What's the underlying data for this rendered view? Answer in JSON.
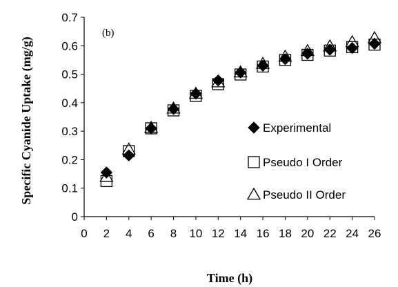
{
  "chart_data": {
    "type": "scatter",
    "panel_label": "(b)",
    "xlabel": "Time (h)",
    "ylabel": "Specific Cyanide Uptake (mg/g)",
    "xlim": [
      0,
      26
    ],
    "ylim": [
      0,
      0.7
    ],
    "xticks": [
      0,
      2,
      4,
      6,
      8,
      10,
      12,
      14,
      16,
      18,
      20,
      22,
      24,
      26
    ],
    "yticks": [
      0,
      0.1,
      0.2,
      0.3,
      0.4,
      0.5,
      0.6,
      0.7
    ],
    "grid": false,
    "legend_position": "right",
    "series": [
      {
        "name": "Experimental",
        "marker": "diamond-filled",
        "x": [
          2,
          4,
          6,
          8,
          10,
          12,
          14,
          16,
          18,
          20,
          22,
          24,
          26
        ],
        "y": [
          0.155,
          0.215,
          0.31,
          0.378,
          0.432,
          0.478,
          0.506,
          0.53,
          0.553,
          0.572,
          0.586,
          0.592,
          0.607
        ]
      },
      {
        "name": "Pseudo I Order",
        "marker": "square-open",
        "x": [
          2,
          4,
          6,
          8,
          10,
          12,
          14,
          16,
          18,
          20,
          22,
          24,
          26
        ],
        "y": [
          0.125,
          0.23,
          0.31,
          0.373,
          0.424,
          0.465,
          0.499,
          0.527,
          0.55,
          0.568,
          0.583,
          0.595,
          0.604
        ]
      },
      {
        "name": "Pseudo II Order",
        "marker": "triangle-open",
        "x": [
          2,
          4,
          6,
          8,
          10,
          12,
          14,
          16,
          18,
          20,
          22,
          24,
          26
        ],
        "y": [
          0.14,
          0.236,
          0.312,
          0.38,
          0.432,
          0.472,
          0.507,
          0.537,
          0.562,
          0.582,
          0.598,
          0.613,
          0.627
        ]
      }
    ]
  }
}
